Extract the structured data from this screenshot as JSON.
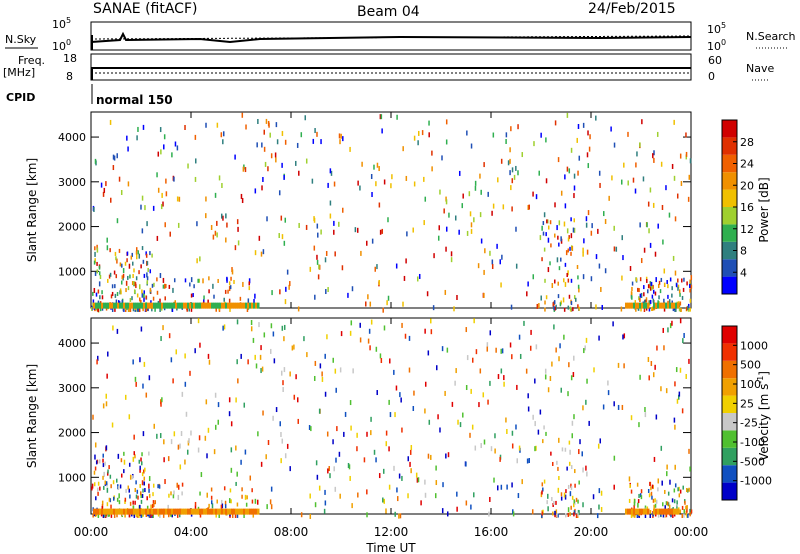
{
  "header": {
    "station": "SANAE (fitACF)",
    "beam": "Beam 04",
    "date": "24/Feb/2015"
  },
  "top_panels": {
    "nsky_label": "N.Sky",
    "nsky_tick_high": "10^5",
    "nsky_tick_low": "10^0",
    "nsearch_label": "N.Search",
    "nsearch_tick_high": "10^5",
    "nsearch_tick_low": "10^0",
    "freq_label": "Freq.",
    "freq_unit": "[MHz]",
    "freq_tick_high": "18",
    "freq_tick_low": "8",
    "nave_label": "Nave",
    "nave_tick_high": "60",
    "nave_tick_low": "0",
    "cpid_label": "CPID",
    "cpid_value": "normal 150"
  },
  "x_axis": {
    "ticks": [
      "00:00",
      "04:00",
      "08:00",
      "12:00",
      "16:00",
      "20:00",
      "00:00"
    ],
    "label": "Time UT"
  },
  "chart_data": [
    {
      "type": "heatmap",
      "ylabel": "Slant Range [km]",
      "yticks": [
        1000,
        2000,
        3000,
        4000
      ],
      "ylim": [
        180,
        4560
      ],
      "xlim": [
        0,
        24
      ],
      "colorbar_label": "Power [dB]",
      "colorbar_ticks": [
        "4",
        "8",
        "12",
        "16",
        "20",
        "24",
        "28"
      ],
      "colorbar_colors": [
        "#0000ff",
        "#1f4fb5",
        "#2f7f7f",
        "#2faf4f",
        "#9fd02f",
        "#f0c000",
        "#f09000",
        "#f06000",
        "#e03000",
        "#d00000"
      ],
      "dense_regions_hours": [
        [
          0,
          2.5
        ],
        [
          2.5,
          6.5
        ],
        [
          18,
          19.5
        ],
        [
          21.5,
          22.5
        ],
        [
          22.5,
          24
        ]
      ],
      "sparse_scatter": true
    },
    {
      "type": "heatmap",
      "ylabel": "Slant Range [km]",
      "yticks": [
        1000,
        2000,
        3000,
        4000
      ],
      "ylim": [
        180,
        4560
      ],
      "xlim": [
        0,
        24
      ],
      "colorbar_label": "Velocity [m s^-1]",
      "colorbar_ticks": [
        "1000",
        "500",
        "100",
        "25",
        "-25",
        "-100",
        "-500",
        "-1000"
      ],
      "colorbar_colors": [
        "#0000c8",
        "#1050c0",
        "#30a060",
        "#50c030",
        "#c8c8c8",
        "#f0d000",
        "#f0a000",
        "#f07000",
        "#f03000",
        "#e00000"
      ],
      "dense_regions_hours": [
        [
          0,
          2.5
        ],
        [
          2.5,
          6.5
        ],
        [
          18,
          19.5
        ],
        [
          21.5,
          22.5
        ],
        [
          22.5,
          24
        ]
      ],
      "sparse_scatter": true
    }
  ]
}
